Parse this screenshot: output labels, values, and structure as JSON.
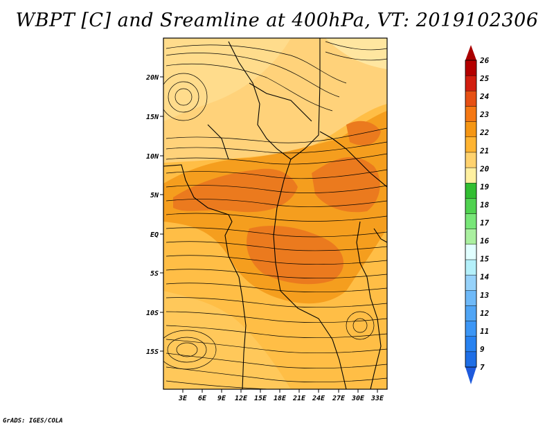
{
  "title": "WBPT [C] and Sreamline at 400hPa, VT: 2019102306",
  "credit": "GrADS: IGES/COLA",
  "map": {
    "lat_ticks": [
      "20N",
      "15N",
      "10N",
      "5N",
      "EQ",
      "5S",
      "10S",
      "15S"
    ],
    "lon_ticks": [
      "3E",
      "6E",
      "9E",
      "12E",
      "15E",
      "18E",
      "21E",
      "24E",
      "27E",
      "30E",
      "33E"
    ]
  },
  "colorbar": {
    "labels": [
      "7",
      "9",
      "11",
      "12",
      "13",
      "14",
      "15",
      "16",
      "17",
      "18",
      "19",
      "20",
      "21",
      "22",
      "23",
      "24",
      "25",
      "26"
    ],
    "colors": [
      "#1e6ee6",
      "#2882f0",
      "#3c96f5",
      "#50a5f5",
      "#6eb9f8",
      "#96d2fa",
      "#b4f0fa",
      "#e1ffff",
      "#aaf0a0",
      "#78e678",
      "#50d250",
      "#32be32",
      "#fff0a0",
      "#ffd26e",
      "#ffb432",
      "#f59614",
      "#f57814",
      "#e65014",
      "#d21e0f",
      "#b40000"
    ],
    "top_color": "#aa0000",
    "bottom_color": "#1e5adc"
  }
}
